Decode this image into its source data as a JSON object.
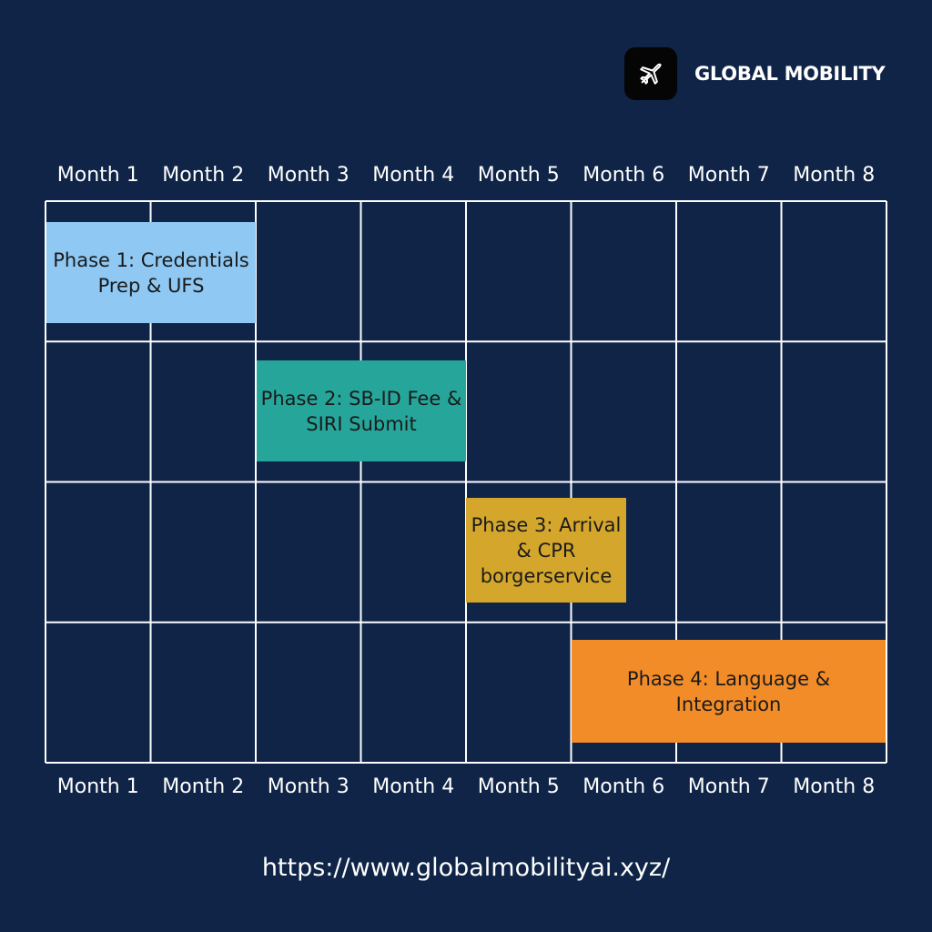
{
  "brand": {
    "name": "GLOBAL MOBILITY",
    "icon": "airplane-icon"
  },
  "months": [
    "Month 1",
    "Month 2",
    "Month 3",
    "Month 4",
    "Month 5",
    "Month 6",
    "Month 7",
    "Month 8"
  ],
  "phases": [
    {
      "label": "Phase 1: Credentials Prep & UFS",
      "start_month": 1,
      "end_month": 2,
      "row": 1,
      "color": "#8ec8f3"
    },
    {
      "label": "Phase 2: SB-ID Fee & SIRI Submit",
      "start_month": 3,
      "end_month": 4,
      "row": 2,
      "color": "#26a69a"
    },
    {
      "label": "Phase 3: Arrival & CPR borgerservice",
      "start_month": 5,
      "end_month": 6,
      "row": 3,
      "color": "#d4a72c"
    },
    {
      "label": "Phase 4: Language & Integration",
      "start_month": 6,
      "end_month": 8,
      "row": 4,
      "color": "#f28c28"
    }
  ],
  "footer": {
    "url": "https://www.globalmobilityai.xyz/"
  },
  "colors": {
    "background": "#0f2447",
    "grid": "#ffffff"
  }
}
